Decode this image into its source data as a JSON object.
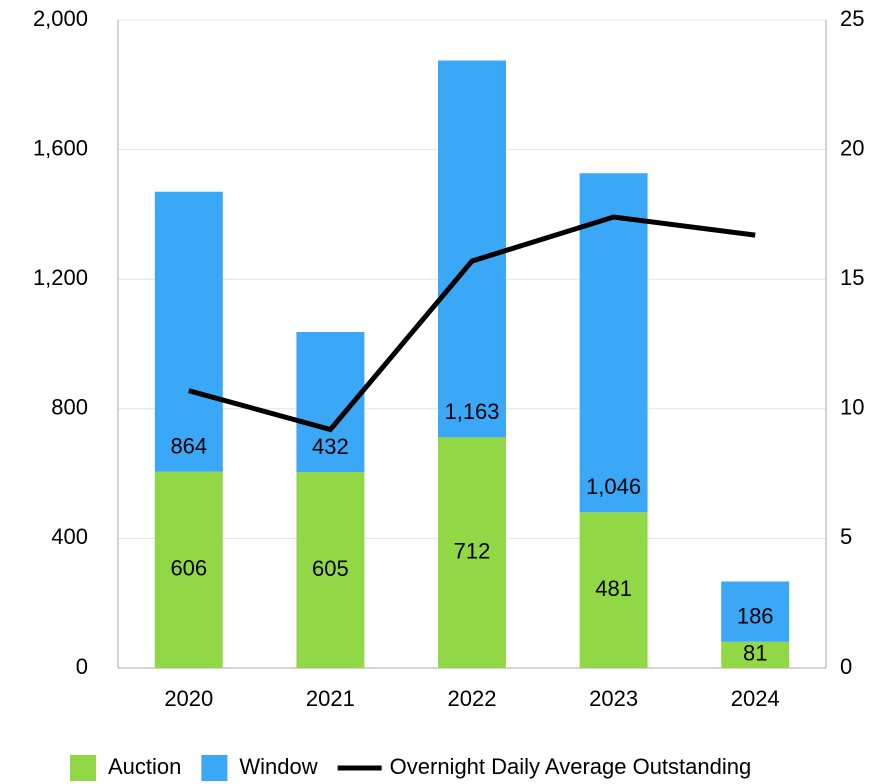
{
  "chart_data": {
    "type": "bar",
    "categories": [
      "2020",
      "2021",
      "2022",
      "2023",
      "2024"
    ],
    "series": [
      {
        "name": "Auction",
        "color": "#92d846",
        "values": [
          606,
          605,
          712,
          481,
          81
        ]
      },
      {
        "name": "Window",
        "color": "#3ba8f7",
        "values": [
          864,
          432,
          1163,
          1046,
          186
        ],
        "value_labels": [
          "864",
          "432",
          "1,163",
          "1,046",
          "186"
        ]
      },
      {
        "name": "Overnight Daily Average Outstanding",
        "type": "line",
        "axis": "y2",
        "color": "#000000",
        "values": [
          10.7,
          9.2,
          15.7,
          17.4,
          16.7
        ]
      }
    ],
    "stacked": true,
    "ylim": [
      0,
      2000
    ],
    "yticks": [
      0,
      400,
      800,
      {
        "value": 1200,
        "label": "1,200"
      },
      {
        "value": 1600,
        "label": "1,600"
      },
      {
        "value": 2000,
        "label": "2,000"
      }
    ],
    "y2lim": [
      0,
      25
    ],
    "y2ticks": [
      0,
      5,
      10,
      15,
      20,
      25
    ],
    "grid": true,
    "legend": "bottom"
  }
}
